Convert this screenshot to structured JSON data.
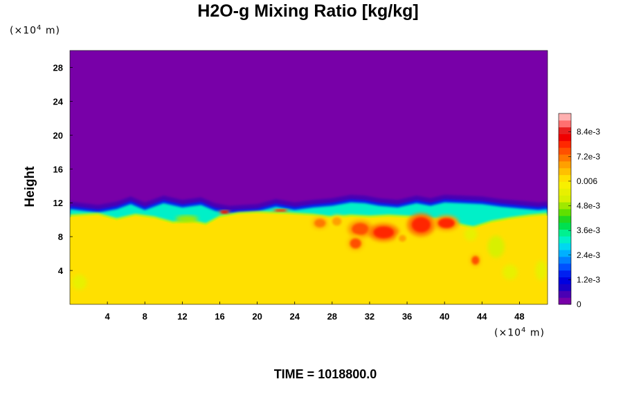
{
  "chart_data": {
    "type": "heatmap",
    "title": "H2O-g Mixing Ratio [kg/kg]",
    "ylabel": "Height",
    "xlabel": "",
    "x_unit": {
      "prefix": "(×10",
      "exp": "4",
      "suffix": " m)"
    },
    "y_unit": {
      "prefix": "(×10",
      "exp": "4",
      "suffix": " m)"
    },
    "xlim": [
      0,
      51
    ],
    "ylim": [
      0,
      30
    ],
    "x_ticks": [
      4,
      8,
      12,
      16,
      20,
      24,
      28,
      32,
      36,
      40,
      44,
      48
    ],
    "y_ticks": [
      4,
      8,
      12,
      16,
      20,
      24,
      28
    ],
    "colorbar": {
      "ticks": [
        {
          "value": 0,
          "label": "0"
        },
        {
          "value": 0.0012,
          "label": "1.2e-3"
        },
        {
          "value": 0.0024,
          "label": "2.4e-3"
        },
        {
          "value": 0.0036,
          "label": "3.6e-3"
        },
        {
          "value": 0.0048,
          "label": "4.8e-3"
        },
        {
          "value": 0.006,
          "label": "0.006"
        },
        {
          "value": 0.0072,
          "label": "7.2e-3"
        },
        {
          "value": 0.0084,
          "label": "8.4e-3"
        }
      ],
      "min": 0,
      "max": 0.0093,
      "colors": [
        "#7800a8",
        "#4a00b4",
        "#1a00c8",
        "#0000e0",
        "#0020f0",
        "#0050ff",
        "#0080ff",
        "#00b0ff",
        "#00d8f0",
        "#00f0c8",
        "#00f090",
        "#00e050",
        "#20d820",
        "#60e000",
        "#a0e800",
        "#d8f000",
        "#e8f000",
        "#f8f000",
        "#ffe000",
        "#ffc000",
        "#ffa000",
        "#ff7800",
        "#ff5000",
        "#ff2800",
        "#f00000",
        "#e82020",
        "#ff7070",
        "#ffb0b0"
      ]
    },
    "field": {
      "background_value": 0,
      "moist_layer_value": 0.0062,
      "moist_layer_top": [
        [
          0,
          11.6
        ],
        [
          3,
          11.2
        ],
        [
          5,
          11.6
        ],
        [
          6.5,
          12.2
        ],
        [
          8,
          11.5
        ],
        [
          10,
          12.3
        ],
        [
          12,
          11.8
        ],
        [
          14,
          12.1
        ],
        [
          15.5,
          11.4
        ],
        [
          17,
          11.1
        ],
        [
          20,
          11.3
        ],
        [
          22,
          11.9
        ],
        [
          24,
          11.5
        ],
        [
          26,
          11.8
        ],
        [
          28,
          12.0
        ],
        [
          30,
          12.4
        ],
        [
          31.5,
          12.3
        ],
        [
          33,
          12.0
        ],
        [
          35,
          11.8
        ],
        [
          37,
          12.3
        ],
        [
          38.5,
          12.0
        ],
        [
          40,
          12.4
        ],
        [
          42,
          12.3
        ],
        [
          44,
          12.2
        ],
        [
          46,
          11.9
        ],
        [
          48,
          11.7
        ],
        [
          50,
          11.5
        ],
        [
          51,
          11.6
        ]
      ],
      "dry_layer_top": [
        [
          0,
          10.6
        ],
        [
          3,
          10.8
        ],
        [
          5,
          10.2
        ],
        [
          7,
          10.7
        ],
        [
          9,
          10.4
        ],
        [
          11,
          9.8
        ],
        [
          13,
          10.0
        ],
        [
          14.5,
          9.6
        ],
        [
          16,
          10.5
        ],
        [
          18,
          10.9
        ],
        [
          20,
          11.0
        ],
        [
          23,
          10.9
        ],
        [
          26,
          10.7
        ],
        [
          28,
          10.4
        ],
        [
          30,
          10.6
        ],
        [
          32,
          10.5
        ],
        [
          34,
          10.6
        ],
        [
          36,
          10.5
        ],
        [
          38,
          10.3
        ],
        [
          40,
          10.1
        ],
        [
          41.5,
          9.6
        ],
        [
          43,
          9.2
        ],
        [
          45,
          9.9
        ],
        [
          47,
          10.3
        ],
        [
          49,
          10.6
        ],
        [
          51,
          10.8
        ]
      ],
      "moist_blobs": [
        {
          "x": 31,
          "y": 8.9,
          "rx": 0.9,
          "ry": 0.7,
          "value": 0.0076
        },
        {
          "x": 33.5,
          "y": 8.5,
          "rx": 1.1,
          "ry": 0.7,
          "value": 0.0078
        },
        {
          "x": 37.5,
          "y": 9.4,
          "rx": 1.0,
          "ry": 0.9,
          "value": 0.0079
        },
        {
          "x": 40.2,
          "y": 9.6,
          "rx": 0.9,
          "ry": 0.6,
          "value": 0.0077
        },
        {
          "x": 30.5,
          "y": 7.2,
          "rx": 0.6,
          "ry": 0.6,
          "value": 0.0074
        },
        {
          "x": 26.7,
          "y": 9.6,
          "rx": 0.6,
          "ry": 0.5,
          "value": 0.0072
        },
        {
          "x": 43.3,
          "y": 5.2,
          "rx": 0.4,
          "ry": 0.5,
          "value": 0.0074
        },
        {
          "x": 16.5,
          "y": 10.9,
          "rx": 0.4,
          "ry": 0.15,
          "value": 0.008
        },
        {
          "x": 22.5,
          "y": 11.1,
          "rx": 0.6,
          "ry": 0.12,
          "value": 0.0078
        },
        {
          "x": 28.5,
          "y": 9.8,
          "rx": 0.5,
          "ry": 0.5,
          "value": 0.0069
        },
        {
          "x": 35.5,
          "y": 7.8,
          "rx": 0.4,
          "ry": 0.4,
          "value": 0.0069
        }
      ],
      "dry_blobs": [
        {
          "x": 45.5,
          "y": 6.8,
          "rx": 0.9,
          "ry": 1.3,
          "value": 0.0052
        },
        {
          "x": 47.0,
          "y": 3.8,
          "rx": 0.8,
          "ry": 0.9,
          "value": 0.0055
        },
        {
          "x": 1.0,
          "y": 2.6,
          "rx": 0.8,
          "ry": 0.9,
          "value": 0.0056
        },
        {
          "x": 50.3,
          "y": 4.0,
          "rx": 0.6,
          "ry": 1.2,
          "value": 0.0055
        },
        {
          "x": 12.5,
          "y": 10.1,
          "rx": 1.2,
          "ry": 0.4,
          "value": 0.0048
        },
        {
          "x": 42.8,
          "y": 8.3,
          "rx": 0.7,
          "ry": 0.8,
          "value": 0.0056
        }
      ],
      "rim_layer_value": 0.0015,
      "rim_thickness": 0.55
    }
  },
  "time_label": "TIME = 1018800.0"
}
